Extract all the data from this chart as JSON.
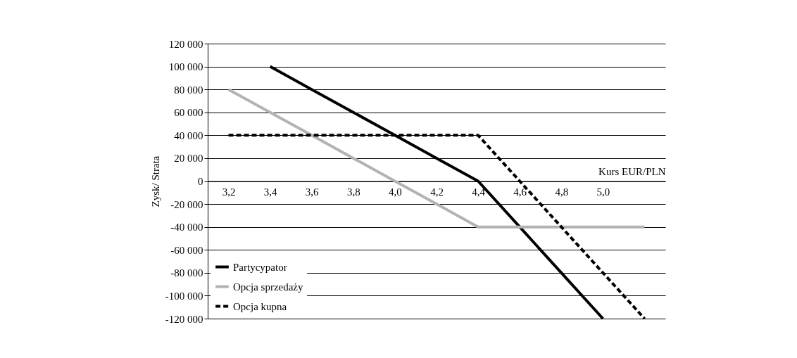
{
  "chart_data": {
    "type": "line",
    "xlabel": "Kurs EUR/PLN",
    "ylabel": "Zysk/ Strata",
    "categories": [
      "3,2",
      "3,4",
      "3,6",
      "3,8",
      "4,0",
      "4,2",
      "4,4",
      "4,6",
      "4,8",
      "5,0",
      null
    ],
    "series": [
      {
        "name": "Partycypator",
        "color": "#000000",
        "line_style": "solid",
        "values": [
          null,
          100000,
          80000,
          60000,
          40000,
          20000,
          0,
          -40000,
          -80000,
          -120000,
          null
        ]
      },
      {
        "name": "Opcja sprzedaży",
        "color": "#b3b3b3",
        "line_style": "solid",
        "values": [
          80000,
          60000,
          40000,
          20000,
          0,
          -20000,
          -40000,
          -40000,
          -40000,
          -40000,
          -40000
        ]
      },
      {
        "name": "Opcja kupna",
        "color": "#000000",
        "line_style": "dashed",
        "values": [
          40000,
          40000,
          40000,
          40000,
          40000,
          40000,
          40000,
          0,
          -40000,
          -80000,
          -120000
        ]
      }
    ],
    "ylim": [
      -120000,
      120000
    ],
    "yticks": [
      {
        "value": -120000,
        "label": "-120 000"
      },
      {
        "value": -100000,
        "label": "-100 000"
      },
      {
        "value": -80000,
        "label": "-80 000"
      },
      {
        "value": -60000,
        "label": "-60 000"
      },
      {
        "value": -40000,
        "label": "-40 000"
      },
      {
        "value": -20000,
        "label": "-20 000"
      },
      0,
      {
        "value": 20000,
        "label": "20 000"
      },
      {
        "value": 40000,
        "label": "40 000"
      },
      {
        "value": 60000,
        "label": "60 000"
      },
      {
        "value": 80000,
        "label": "80 000"
      },
      {
        "value": 100000,
        "label": "100 000"
      },
      {
        "value": 120000,
        "label": "120 000"
      }
    ],
    "grid": "y",
    "legend": "bottom left",
    "marker": "none"
  }
}
